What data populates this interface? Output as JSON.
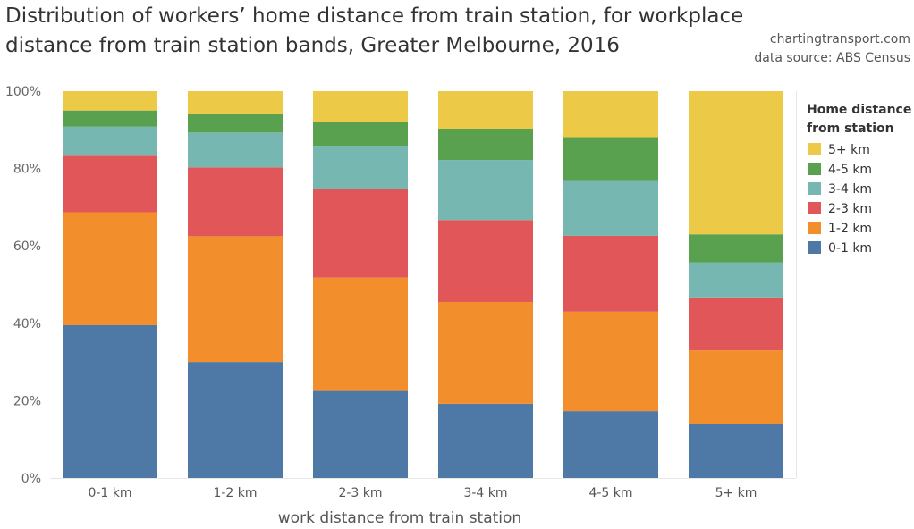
{
  "header": {
    "title": "Distribution of workers’ home distance from train station, for workplace distance from train station bands, Greater Melbourne, 2016",
    "site": "chartingtransport.com",
    "source": "data source: ABS Census"
  },
  "chart_data": {
    "type": "bar",
    "stacked": true,
    "normalized": true,
    "title": "Distribution of workers’ home distance from train station, for workplace distance from train station bands, Greater Melbourne, 2016",
    "xlabel": "work distance from train station",
    "ylabel": "",
    "ylim": [
      0,
      100
    ],
    "y_ticks": [
      "0%",
      "20%",
      "40%",
      "60%",
      "80%",
      "100%"
    ],
    "y_tick_values": [
      0,
      20,
      40,
      60,
      80,
      100
    ],
    "categories": [
      "0-1 km",
      "1-2 km",
      "2-3 km",
      "3-4 km",
      "4-5 km",
      "5+ km"
    ],
    "legend_title": "Home distance from station",
    "legend_placement": "right",
    "grid": false,
    "series": [
      {
        "name": "0-1 km",
        "color": "#4e79a7",
        "values": [
          39.5,
          30.0,
          22.5,
          19.2,
          17.3,
          14.0
        ]
      },
      {
        "name": "1-2 km",
        "color": "#f28e2b",
        "values": [
          29.2,
          32.5,
          29.3,
          26.3,
          25.7,
          19.0
        ]
      },
      {
        "name": "2-3 km",
        "color": "#e15759",
        "values": [
          14.6,
          17.8,
          22.9,
          21.2,
          19.6,
          13.7
        ]
      },
      {
        "name": "3-4 km",
        "color": "#76b7b2",
        "values": [
          7.5,
          9.0,
          11.2,
          15.5,
          14.4,
          9.0
        ]
      },
      {
        "name": "4-5 km",
        "color": "#59a14f",
        "values": [
          4.2,
          4.7,
          6.1,
          8.1,
          11.1,
          7.3
        ]
      },
      {
        "name": "5+ km",
        "color": "#edc948",
        "values": [
          5.0,
          6.0,
          8.0,
          9.7,
          11.9,
          37.0
        ]
      }
    ]
  }
}
